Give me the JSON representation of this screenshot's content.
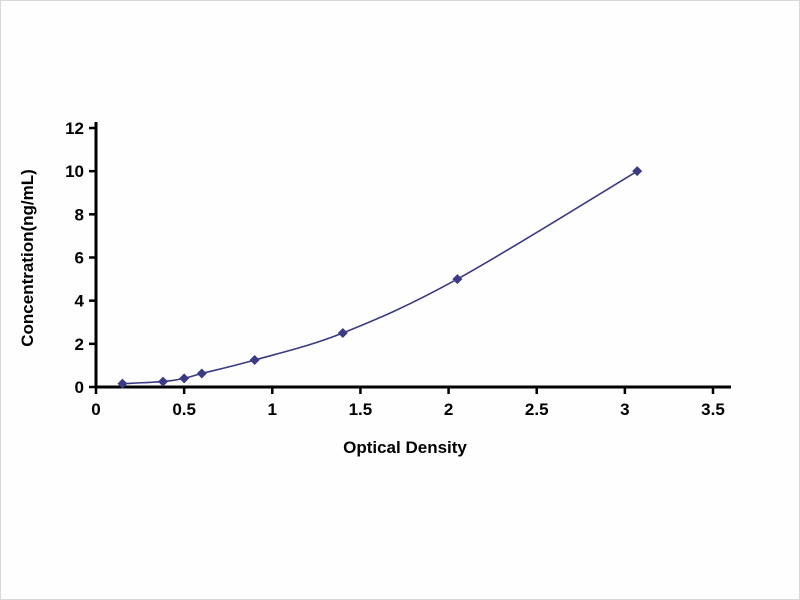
{
  "chart_data": {
    "type": "line",
    "title": "",
    "xlabel": "Optical Density",
    "ylabel": "Concentration(ng/mL)",
    "x": [
      0.15,
      0.38,
      0.5,
      0.6,
      0.9,
      1.4,
      2.05,
      3.07
    ],
    "y": [
      0.156,
      0.25,
      0.4,
      0.625,
      1.25,
      2.5,
      5.0,
      10.0
    ],
    "xlim": [
      0,
      3.5
    ],
    "ylim": [
      0,
      12
    ],
    "xticks": [
      0,
      0.5,
      1,
      1.5,
      2,
      2.5,
      3,
      3.5
    ],
    "yticks": [
      0,
      2,
      4,
      6,
      8,
      10,
      12
    ],
    "line_color": "#3a3a85",
    "axis_color": "#000000",
    "marker": "diamond",
    "grid": false,
    "legend_position": "none"
  }
}
